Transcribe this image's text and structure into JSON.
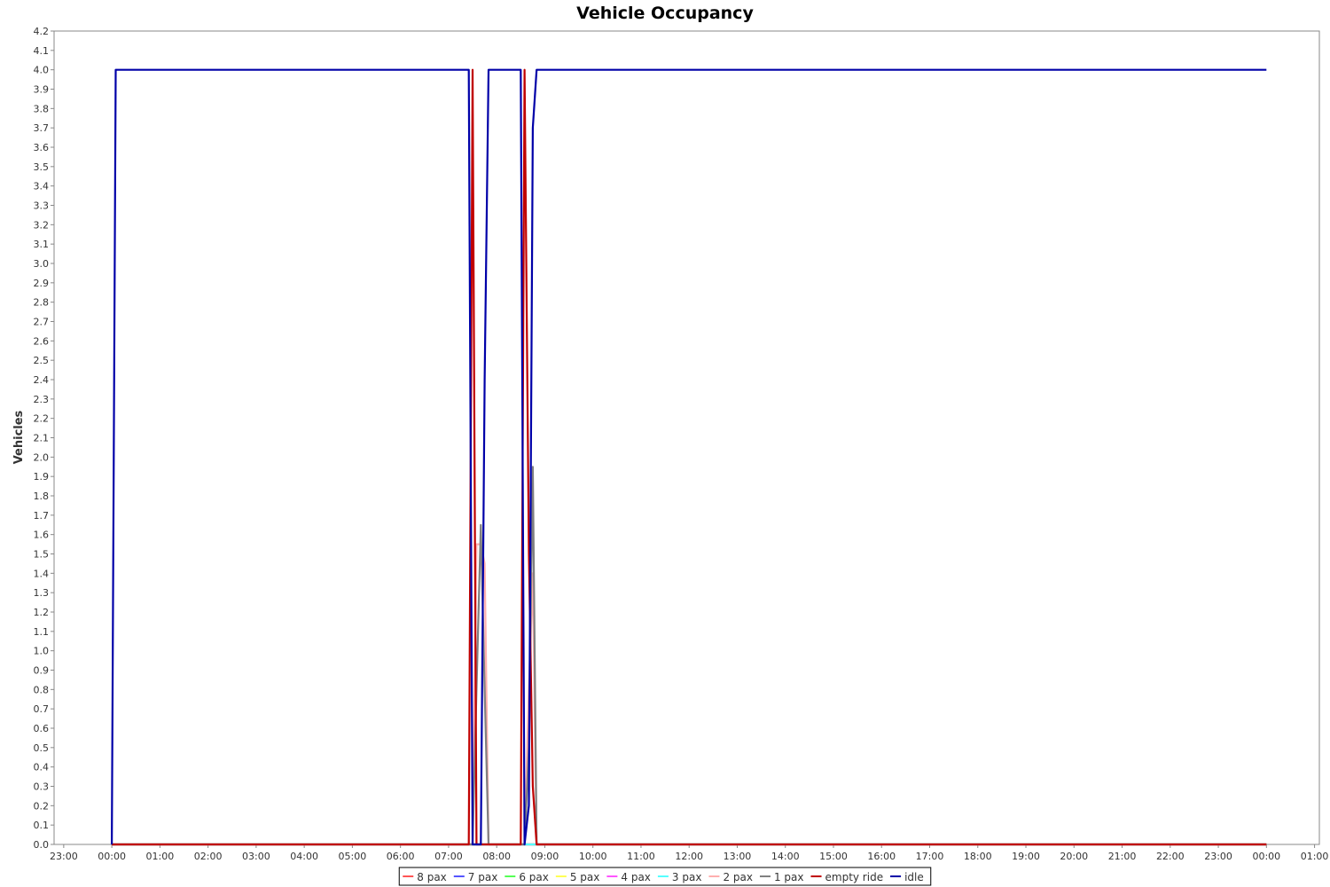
{
  "chart_data": {
    "type": "line",
    "title": "Vehicle Occupancy",
    "xlabel": "",
    "ylabel": "Vehicles",
    "x_unit": "hours",
    "xlim": [
      -1.2,
      25.1
    ],
    "ylim": [
      0.0,
      4.2
    ],
    "x_ticks": [
      {
        "v": -1,
        "label": "23:00"
      },
      {
        "v": 0,
        "label": "00:00"
      },
      {
        "v": 1,
        "label": "01:00"
      },
      {
        "v": 2,
        "label": "02:00"
      },
      {
        "v": 3,
        "label": "03:00"
      },
      {
        "v": 4,
        "label": "04:00"
      },
      {
        "v": 5,
        "label": "05:00"
      },
      {
        "v": 6,
        "label": "06:00"
      },
      {
        "v": 7,
        "label": "07:00"
      },
      {
        "v": 8,
        "label": "08:00"
      },
      {
        "v": 9,
        "label": "09:00"
      },
      {
        "v": 10,
        "label": "10:00"
      },
      {
        "v": 11,
        "label": "11:00"
      },
      {
        "v": 12,
        "label": "12:00"
      },
      {
        "v": 13,
        "label": "13:00"
      },
      {
        "v": 14,
        "label": "14:00"
      },
      {
        "v": 15,
        "label": "15:00"
      },
      {
        "v": 16,
        "label": "16:00"
      },
      {
        "v": 17,
        "label": "17:00"
      },
      {
        "v": 18,
        "label": "18:00"
      },
      {
        "v": 19,
        "label": "19:00"
      },
      {
        "v": 20,
        "label": "20:00"
      },
      {
        "v": 21,
        "label": "21:00"
      },
      {
        "v": 22,
        "label": "22:00"
      },
      {
        "v": 23,
        "label": "23:00"
      },
      {
        "v": 24,
        "label": "00:00"
      },
      {
        "v": 25,
        "label": "01:00"
      }
    ],
    "y_ticks": [
      "0.0",
      "0.1",
      "0.2",
      "0.3",
      "0.4",
      "0.5",
      "0.6",
      "0.7",
      "0.8",
      "0.9",
      "1.0",
      "1.1",
      "1.2",
      "1.3",
      "1.4",
      "1.5",
      "1.6",
      "1.7",
      "1.8",
      "1.9",
      "2.0",
      "2.1",
      "2.2",
      "2.3",
      "2.4",
      "2.5",
      "2.6",
      "2.7",
      "2.8",
      "2.9",
      "3.0",
      "3.1",
      "3.2",
      "3.3",
      "3.4",
      "3.5",
      "3.6",
      "3.7",
      "3.8",
      "3.9",
      "4.0",
      "4.1",
      "4.2"
    ],
    "grid": false,
    "legend_position": "bottom",
    "series": [
      {
        "name": "8 pax",
        "color": "#ff5555",
        "x": [
          0,
          24
        ],
        "y": [
          0,
          0
        ]
      },
      {
        "name": "7 pax",
        "color": "#5555ff",
        "x": [
          0,
          24
        ],
        "y": [
          0,
          0
        ]
      },
      {
        "name": "6 pax",
        "color": "#55ff55",
        "x": [
          0,
          24
        ],
        "y": [
          0,
          0
        ]
      },
      {
        "name": "5 pax",
        "color": "#ffff55",
        "x": [
          0,
          24
        ],
        "y": [
          0,
          0
        ]
      },
      {
        "name": "4 pax",
        "color": "#ff55ff",
        "x": [
          0,
          24
        ],
        "y": [
          0,
          0
        ]
      },
      {
        "name": "3 pax",
        "color": "#55ffff",
        "x": [
          0,
          24
        ],
        "y": [
          0,
          0
        ]
      },
      {
        "name": "2 pax",
        "color": "#ffafaf",
        "x": [
          0,
          7.5,
          7.58,
          7.67,
          7.75,
          7.83,
          8.58,
          8.67,
          8.75,
          8.83,
          24
        ],
        "y": [
          0,
          0,
          1.55,
          1.55,
          1.45,
          0,
          0,
          0.8,
          1.4,
          0,
          0
        ]
      },
      {
        "name": "1 pax",
        "color": "#808080",
        "x": [
          0,
          7.5,
          7.58,
          7.67,
          7.75,
          7.83,
          8.58,
          8.67,
          8.75,
          8.83,
          24
        ],
        "y": [
          0,
          0,
          0.8,
          1.65,
          0.8,
          0,
          0,
          0.5,
          1.95,
          0,
          0
        ]
      },
      {
        "name": "empty ride",
        "color": "#c00000",
        "x": [
          0,
          7.42,
          7.5,
          7.58,
          7.67,
          7.75,
          7.83,
          8.5,
          8.58,
          8.67,
          8.75,
          8.83,
          24
        ],
        "y": [
          0,
          0,
          4.0,
          0,
          0,
          0,
          0,
          0,
          4.0,
          1.5,
          0.3,
          0,
          0
        ]
      },
      {
        "name": "idle",
        "color": "#0000a8",
        "x": [
          0,
          0.08,
          7.42,
          7.5,
          7.58,
          7.67,
          7.75,
          7.83,
          8.5,
          8.58,
          8.67,
          8.75,
          8.83,
          24
        ],
        "y": [
          0,
          4.0,
          4.0,
          0,
          0,
          0,
          2.4,
          4.0,
          4.0,
          0,
          0.2,
          3.7,
          4.0,
          4.0
        ]
      }
    ]
  }
}
